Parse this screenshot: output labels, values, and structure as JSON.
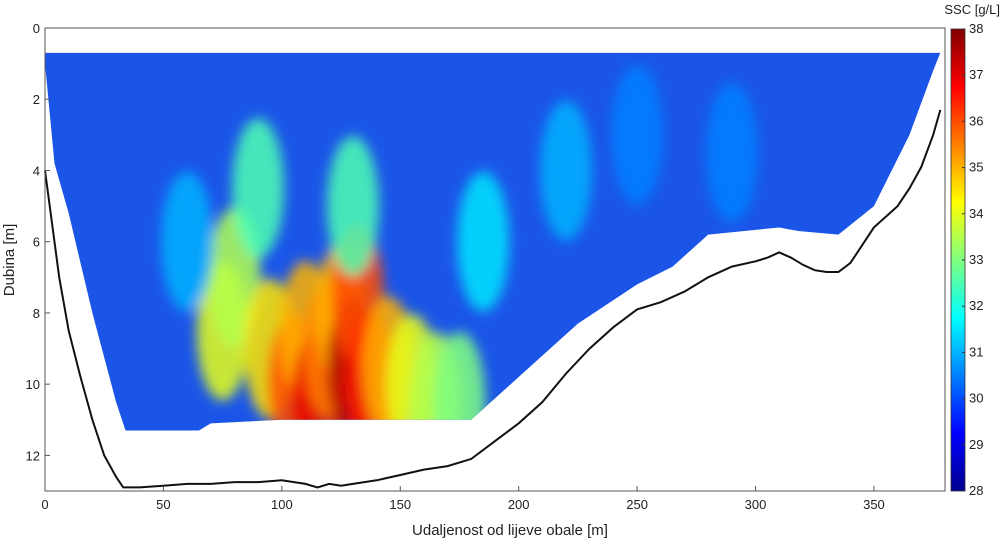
{
  "chart_data": {
    "type": "heatmap",
    "xlabel": "Udaljenost od lijeve obale [m]",
    "ylabel": "Dubina [m]",
    "colorbar_label": "SSC [g/L]",
    "xlim": [
      0,
      380
    ],
    "ylim": [
      0,
      13
    ],
    "y_reversed": true,
    "x_ticks": [
      0,
      50,
      100,
      150,
      200,
      250,
      300,
      350
    ],
    "y_ticks": [
      0,
      2,
      4,
      6,
      8,
      10,
      12
    ],
    "colorbar_range": [
      28,
      38
    ],
    "colorbar_ticks": [
      28,
      29,
      30,
      31,
      32,
      33,
      34,
      35,
      36,
      37,
      38
    ],
    "colormap": "jet",
    "grid": false,
    "measured_top_depth": 0.7,
    "measured_region_bottom": {
      "x": [
        0,
        4,
        10,
        20,
        30,
        34,
        36,
        50,
        65,
        70,
        100,
        150,
        180,
        190,
        200,
        210,
        225,
        250,
        265,
        280,
        310,
        318,
        335,
        350,
        365,
        375,
        378
      ],
      "depth": [
        1.0,
        3.8,
        5.2,
        8.0,
        10.5,
        11.3,
        11.3,
        11.3,
        11.3,
        11.1,
        11.0,
        11.0,
        11.0,
        10.4,
        9.8,
        9.2,
        8.3,
        7.2,
        6.7,
        5.8,
        5.6,
        5.7,
        5.8,
        5.0,
        3.0,
        1.2,
        0.7
      ]
    },
    "riverbed_profile": {
      "x": [
        0,
        3,
        6,
        10,
        15,
        20,
        25,
        30,
        33,
        35,
        40,
        50,
        60,
        70,
        80,
        90,
        100,
        110,
        115,
        120,
        125,
        130,
        140,
        150,
        160,
        170,
        180,
        190,
        200,
        210,
        220,
        230,
        240,
        250,
        260,
        270,
        280,
        290,
        300,
        305,
        310,
        315,
        320,
        325,
        330,
        335,
        340,
        345,
        350,
        355,
        360,
        365,
        370,
        375,
        378
      ],
      "depth": [
        4.0,
        5.5,
        7.0,
        8.5,
        9.8,
        11.0,
        12.0,
        12.6,
        12.9,
        12.9,
        12.9,
        12.85,
        12.8,
        12.8,
        12.75,
        12.75,
        12.7,
        12.8,
        12.9,
        12.8,
        12.85,
        12.8,
        12.7,
        12.55,
        12.4,
        12.3,
        12.1,
        11.6,
        11.1,
        10.5,
        9.7,
        9.0,
        8.4,
        7.9,
        7.7,
        7.4,
        7.0,
        6.7,
        6.55,
        6.45,
        6.3,
        6.45,
        6.65,
        6.8,
        6.85,
        6.85,
        6.6,
        6.1,
        5.6,
        5.3,
        5.0,
        4.5,
        3.9,
        3.0,
        2.3
      ]
    },
    "ssc_hotspots": [
      {
        "x": 75,
        "depth": 8.5,
        "value": 34
      },
      {
        "x": 80,
        "depth": 7.0,
        "value": 33.5
      },
      {
        "x": 95,
        "depth": 9.0,
        "value": 34.5
      },
      {
        "x": 105,
        "depth": 10.0,
        "value": 36
      },
      {
        "x": 110,
        "depth": 8.5,
        "value": 35
      },
      {
        "x": 115,
        "depth": 10.5,
        "value": 37
      },
      {
        "x": 120,
        "depth": 9.0,
        "value": 35.5
      },
      {
        "x": 125,
        "depth": 8.0,
        "value": 35
      },
      {
        "x": 130,
        "depth": 9.5,
        "value": 37.5
      },
      {
        "x": 132,
        "depth": 7.5,
        "value": 36
      },
      {
        "x": 138,
        "depth": 10.0,
        "value": 36.5
      },
      {
        "x": 145,
        "depth": 9.5,
        "value": 35
      },
      {
        "x": 155,
        "depth": 10.0,
        "value": 34
      },
      {
        "x": 165,
        "depth": 10.5,
        "value": 33.5
      },
      {
        "x": 175,
        "depth": 10.5,
        "value": 33
      },
      {
        "x": 60,
        "depth": 6.0,
        "value": 31
      },
      {
        "x": 90,
        "depth": 4.5,
        "value": 32.5
      },
      {
        "x": 130,
        "depth": 5.0,
        "value": 32.5
      },
      {
        "x": 185,
        "depth": 6.0,
        "value": 31.5
      },
      {
        "x": 220,
        "depth": 4.0,
        "value": 31
      },
      {
        "x": 250,
        "depth": 3.0,
        "value": 30.5
      },
      {
        "x": 290,
        "depth": 3.5,
        "value": 30.5
      }
    ]
  }
}
